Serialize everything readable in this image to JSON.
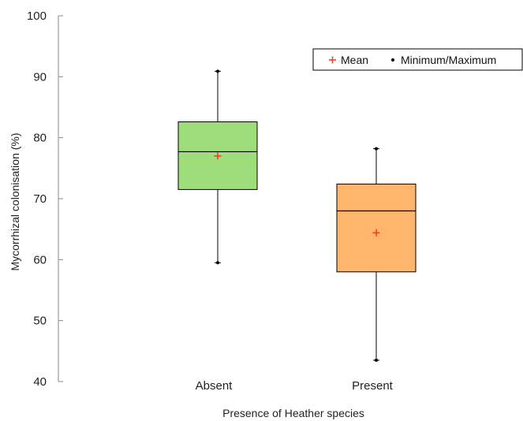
{
  "chart_data": {
    "type": "box",
    "xlabel": "Presence of Heather species",
    "ylabel": "Mycorrhizal colonisation (%)",
    "ylim": [
      40,
      100
    ],
    "yticks": [
      40,
      50,
      60,
      70,
      80,
      90,
      100
    ],
    "categories": [
      "Absent",
      "Present"
    ],
    "boxes": [
      {
        "category": "Absent",
        "min": 59.5,
        "q1": 71.5,
        "median": 77.7,
        "q3": 82.6,
        "max": 90.9,
        "mean": 77.0,
        "color": "#9ede7a"
      },
      {
        "category": "Present",
        "min": 43.5,
        "q1": 58.0,
        "median": 68.0,
        "q3": 72.4,
        "max": 78.2,
        "mean": 64.4,
        "color": "#ffb56b"
      }
    ],
    "legend": {
      "position": "top-right",
      "items": [
        {
          "label": "Mean",
          "marker": "red-plus",
          "color": "#ff3b1f"
        },
        {
          "label": "Minimum/Maximum",
          "marker": "black-dot",
          "color": "#000000"
        }
      ]
    },
    "grid": false
  }
}
